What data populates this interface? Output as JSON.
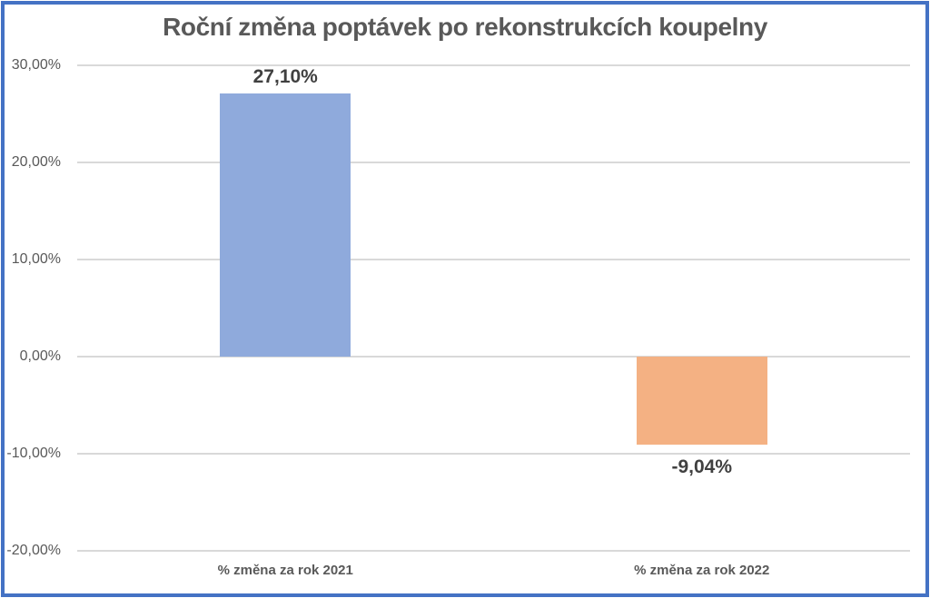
{
  "chart_data": {
    "type": "bar",
    "title": "Roční změna poptávek po rekonstrukcích koupelny",
    "categories": [
      "% změna za rok 2021",
      "% změna za rok 2022"
    ],
    "values": [
      27.1,
      -9.04
    ],
    "value_labels": [
      "27,10%",
      "-9,04%"
    ],
    "bar_colors": [
      "#8FAADC",
      "#F4B183"
    ],
    "xlabel": "",
    "ylabel": "",
    "ylim": [
      -20,
      30
    ],
    "ytick_values": [
      30,
      20,
      10,
      0,
      -10,
      -20
    ],
    "ytick_labels": [
      "30,00%",
      "20,00%",
      "10,00%",
      "0,00%",
      "-10,00%",
      "-20,00%"
    ],
    "grid": true,
    "legend": false,
    "number_format": "percent-comma-decimal"
  },
  "colors": {
    "frame-border": "#4472C4",
    "gridline": "#D9D9D9",
    "title-text": "#595959",
    "axis-text": "#595959",
    "data-label-text": "#404040"
  }
}
